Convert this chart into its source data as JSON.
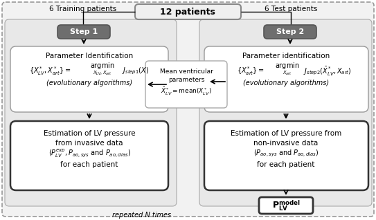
{
  "fig_width": 5.43,
  "fig_height": 3.18,
  "dpi": 100,
  "bg_color": "#ffffff",
  "panel_bg": "#e8e8e8",
  "outer_bg": "#f0f0f0",
  "step_color": "#707070",
  "title_box": "12 patients",
  "left_label": "6 Training patients",
  "right_label": "6 Test patients",
  "step1_label": "Step 1",
  "step2_label": "Step 2",
  "bottom_label": "repeated N times"
}
